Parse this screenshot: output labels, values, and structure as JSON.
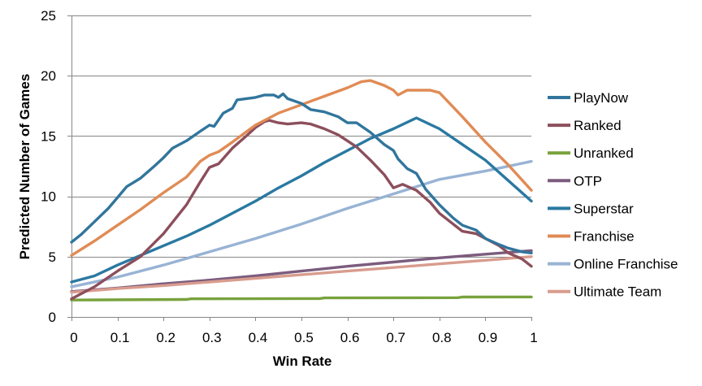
{
  "chart_data": {
    "type": "line",
    "title": "",
    "xlabel": "Win Rate",
    "ylabel": "Predicted Number of Games",
    "xlim": [
      0,
      1
    ],
    "ylim": [
      0,
      25
    ],
    "xticks": [
      "0",
      "0.1",
      "0.2",
      "0.3",
      "0.4",
      "0.5",
      "0.6",
      "0.7",
      "0.8",
      "0.9",
      "1"
    ],
    "xtick_values": [
      0,
      0.1,
      0.2,
      0.3,
      0.4,
      0.5,
      0.6,
      0.7,
      0.8,
      0.9,
      1
    ],
    "yticks": [
      "0",
      "5",
      "10",
      "15",
      "20",
      "25"
    ],
    "ytick_values": [
      0,
      5,
      10,
      15,
      20,
      25
    ],
    "grid": "horizontal",
    "legend_position": "right",
    "series": [
      {
        "name": "PlayNow",
        "color": "#31759C",
        "x": [
          0,
          0.02,
          0.05,
          0.08,
          0.1,
          0.12,
          0.15,
          0.18,
          0.2,
          0.22,
          0.25,
          0.28,
          0.3,
          0.31,
          0.33,
          0.35,
          0.36,
          0.38,
          0.4,
          0.42,
          0.44,
          0.45,
          0.46,
          0.47,
          0.5,
          0.52,
          0.55,
          0.58,
          0.6,
          0.62,
          0.65,
          0.68,
          0.7,
          0.71,
          0.73,
          0.75,
          0.77,
          0.8,
          0.83,
          0.85,
          0.88,
          0.9,
          0.93,
          0.95,
          0.98,
          1
        ],
        "y": [
          6.2,
          6.8,
          7.9,
          9.0,
          9.9,
          10.8,
          11.5,
          12.5,
          13.2,
          14.0,
          14.6,
          15.4,
          15.9,
          15.8,
          16.9,
          17.3,
          18.0,
          18.1,
          18.2,
          18.4,
          18.4,
          18.2,
          18.5,
          18.1,
          17.7,
          17.2,
          17.0,
          16.6,
          16.1,
          16.1,
          15.3,
          14.3,
          13.8,
          13.1,
          12.3,
          11.9,
          10.6,
          9.3,
          8.2,
          7.6,
          7.2,
          6.5,
          6.0,
          5.7,
          5.4,
          5.3
        ]
      },
      {
        "name": "Ranked",
        "color": "#8C4F5C",
        "x": [
          0,
          0.05,
          0.1,
          0.15,
          0.2,
          0.25,
          0.28,
          0.3,
          0.32,
          0.35,
          0.38,
          0.4,
          0.42,
          0.43,
          0.45,
          0.47,
          0.5,
          0.52,
          0.55,
          0.58,
          0.6,
          0.62,
          0.65,
          0.68,
          0.7,
          0.72,
          0.75,
          0.78,
          0.8,
          0.82,
          0.85,
          0.88,
          0.9,
          0.93,
          0.95,
          0.98,
          1
        ],
        "y": [
          1.5,
          2.5,
          3.8,
          5.0,
          6.9,
          9.3,
          11.2,
          12.4,
          12.7,
          14.0,
          15.0,
          15.7,
          16.2,
          16.3,
          16.1,
          16.0,
          16.1,
          16.0,
          15.6,
          15.1,
          14.6,
          14.1,
          13.0,
          11.8,
          10.7,
          11.0,
          10.5,
          9.5,
          8.6,
          8.0,
          7.1,
          6.9,
          6.5,
          5.9,
          5.3,
          4.8,
          4.2
        ]
      },
      {
        "name": "Unranked",
        "color": "#78A23D",
        "x": [
          0,
          0.25,
          0.26,
          0.54,
          0.55,
          0.84,
          0.85,
          1
        ],
        "y": [
          1.4,
          1.45,
          1.5,
          1.52,
          1.58,
          1.6,
          1.65,
          1.66
        ]
      },
      {
        "name": "OTP",
        "color": "#7B5C7E",
        "x": [
          0,
          0.1,
          0.2,
          0.3,
          0.4,
          0.5,
          0.6,
          0.7,
          0.8,
          0.9,
          1
        ],
        "y": [
          2.1,
          2.4,
          2.75,
          3.05,
          3.4,
          3.8,
          4.2,
          4.55,
          4.9,
          5.2,
          5.5
        ]
      },
      {
        "name": "Superstar",
        "color": "#2A79A1",
        "x": [
          0,
          0.05,
          0.1,
          0.15,
          0.2,
          0.25,
          0.3,
          0.35,
          0.4,
          0.45,
          0.5,
          0.55,
          0.6,
          0.65,
          0.7,
          0.75,
          0.8,
          0.85,
          0.9,
          0.95,
          1
        ],
        "y": [
          2.9,
          3.4,
          4.3,
          5.1,
          5.9,
          6.7,
          7.6,
          8.6,
          9.6,
          10.7,
          11.7,
          12.8,
          13.8,
          14.8,
          15.6,
          16.5,
          15.6,
          14.3,
          13.0,
          11.3,
          9.6
        ]
      },
      {
        "name": "Franchise",
        "color": "#E08B55",
        "x": [
          0,
          0.05,
          0.1,
          0.15,
          0.2,
          0.25,
          0.28,
          0.3,
          0.32,
          0.35,
          0.4,
          0.45,
          0.5,
          0.55,
          0.6,
          0.63,
          0.65,
          0.68,
          0.7,
          0.71,
          0.73,
          0.75,
          0.78,
          0.8,
          0.85,
          0.9,
          0.95,
          1
        ],
        "y": [
          5.1,
          6.3,
          7.6,
          8.9,
          10.3,
          11.6,
          12.9,
          13.4,
          13.7,
          14.5,
          15.9,
          16.9,
          17.6,
          18.3,
          19.0,
          19.5,
          19.6,
          19.2,
          18.8,
          18.4,
          18.8,
          18.8,
          18.8,
          18.6,
          16.6,
          14.5,
          12.6,
          10.5
        ]
      },
      {
        "name": "Online Franchise",
        "color": "#98B3D4",
        "x": [
          0,
          0.1,
          0.2,
          0.3,
          0.4,
          0.5,
          0.6,
          0.7,
          0.8,
          0.9,
          1
        ],
        "y": [
          2.5,
          3.3,
          4.3,
          5.4,
          6.5,
          7.7,
          9.0,
          10.2,
          11.4,
          12.1,
          12.9
        ]
      },
      {
        "name": "Ultimate Team",
        "color": "#D89C8E",
        "x": [
          0,
          0.1,
          0.2,
          0.3,
          0.4,
          0.5,
          0.6,
          0.7,
          0.8,
          0.9,
          1
        ],
        "y": [
          2.05,
          2.35,
          2.6,
          2.9,
          3.2,
          3.5,
          3.8,
          4.1,
          4.4,
          4.7,
          5.0
        ]
      }
    ]
  }
}
